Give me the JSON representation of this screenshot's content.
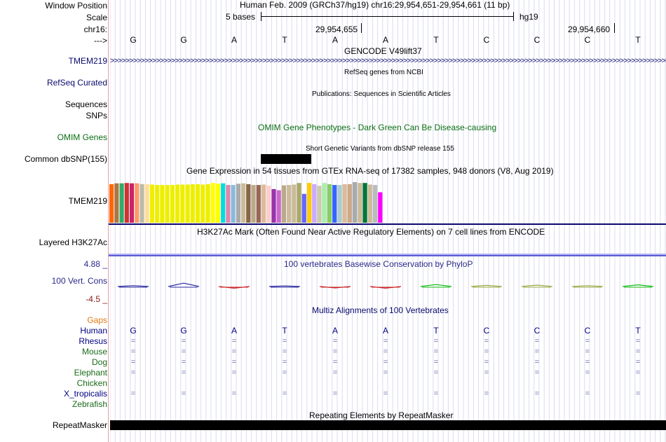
{
  "ruler": {
    "window_label": "Window Position",
    "scale_label": "Scale",
    "chrom_label": "chr16:",
    "arrow_label": "--->",
    "title": "Human Feb. 2009 (GRCh37/hg19)   chr16:29,954,651-29,954,661 (11 bp)",
    "scale_text": "5 bases",
    "assembly": "hg19",
    "pos1": "29,954,655",
    "pos2": "29,954,660",
    "bases": [
      "G",
      "G",
      "A",
      "T",
      "A",
      "A",
      "T",
      "C",
      "C",
      "C",
      "T"
    ]
  },
  "tracks": {
    "gencode": {
      "title": "GENCODE V49lift37",
      "label": "TMEM219",
      "color": "#0a0a6e"
    },
    "refseq": {
      "title": "RefSeq genes from NCBI",
      "label": "RefSeq Curated"
    },
    "pubs": {
      "title": "Publications: Sequences in Scientific Articles",
      "label1": "Sequences",
      "label2": "SNPs"
    },
    "omim": {
      "title": "OMIM Gene Phenotypes - Dark Green Can Be Disease-causing",
      "label": "OMIM Genes",
      "color": "#0a6e14"
    },
    "dbsnp": {
      "title": "Short Genetic Variants from dbSNP release 155",
      "label": "Common dbSNP(155)"
    },
    "gtex": {
      "title": "Gene Expression in 54 tissues from GTEx RNA-seq of 17382 samples, 948 donors (V8, Aug 2019)",
      "label": "TMEM219",
      "colors": [
        "#ff6600",
        "#aa7744",
        "#33aa66",
        "#cc3333",
        "#cc2266",
        "#ff9966",
        "#bbbbaa",
        "#ffdd99",
        "#eeee00",
        "#eeee00",
        "#eeee00",
        "#eeee00",
        "#eeee00",
        "#eeee00",
        "#eeee00",
        "#eeee00",
        "#eeee00",
        "#eeee00",
        "#eeee00",
        "#eeee00",
        "#ffff00",
        "#ffff00",
        "#00dddd",
        "#dd88aa",
        "#88bbdd",
        "#aaaaaa",
        "#ccbb99",
        "#886644",
        "#bbaa88",
        "#996655",
        "#ddbb99",
        "#ffcccc",
        "#9933aa",
        "#cc66cc",
        "#bbaa88",
        "#ccbb99",
        "#ccbb99",
        "#aaaa66",
        "#6666ff",
        "#ffcc00",
        "#ccaaff",
        "#ccccaa",
        "#aaeeaa",
        "#88cc66",
        "#3366ff",
        "#aacccc",
        "#ddbb99",
        "#ccaa88",
        "#aaaaaa",
        "#ccbb99",
        "#007733",
        "#ccbb99",
        "#bbbbbb",
        "#ff00ff"
      ],
      "values": [
        0.95,
        0.97,
        0.97,
        0.98,
        0.97,
        0.97,
        0.95,
        0.95,
        0.94,
        0.93,
        0.93,
        0.93,
        0.93,
        0.94,
        0.94,
        0.94,
        0.95,
        0.95,
        0.94,
        0.95,
        0.98,
        0.96,
        0.97,
        0.93,
        0.93,
        0.96,
        0.97,
        0.95,
        0.93,
        0.93,
        0.94,
        0.91,
        0.83,
        0.8,
        0.92,
        0.93,
        0.94,
        0.98,
        0.71,
        0.98,
        0.95,
        0.91,
        0.98,
        0.95,
        0.93,
        0.93,
        0.95,
        0.95,
        1.0,
        0.98,
        0.98,
        0.94,
        0.93,
        0.75
      ]
    },
    "h3k27ac": {
      "title": "H3K27Ac Mark (Often Found Near Active Regulatory Elements) on 7 cell lines from ENCODE",
      "label": "Layered H3K27Ac"
    },
    "cons": {
      "title": "100 vertebrates Basewise Conservation by PhyloP",
      "label": "100 Vert. Cons",
      "ymax": "4.88 _",
      "ymin": "-4.5 _",
      "scores": [
        0.3,
        1.2,
        -0.6,
        0.2,
        -0.5,
        -0.6,
        0.7,
        0.4,
        0.5,
        0.3,
        0.6
      ],
      "colors": [
        "#2a2aa0",
        "#2a2aa0",
        "#cc2222",
        "#2a2aa0",
        "#cc2222",
        "#cc2222",
        "#11bb11",
        "#99aa44",
        "#99aa44",
        "#99aa44",
        "#11bb11"
      ]
    },
    "multiz": {
      "title": "Multiz Alignments of 100 Vertebrates",
      "gaps": "Gaps",
      "species": [
        {
          "name": "Human",
          "color": "#000080",
          "row": [
            "G",
            "G",
            "A",
            "T",
            "A",
            "A",
            "T",
            "C",
            "C",
            "C",
            "T"
          ]
        },
        {
          "name": "Rhesus",
          "color": "#000080",
          "row": [
            "=",
            "=",
            "=",
            "=",
            "=",
            "=",
            "=",
            "=",
            "=",
            "=",
            "="
          ]
        },
        {
          "name": "Mouse",
          "color": "#1a6a1a",
          "row": [
            "=",
            "=",
            "=",
            "=",
            "=",
            "=",
            "=",
            "=",
            "=",
            "=",
            "="
          ]
        },
        {
          "name": "Dog",
          "color": "#1a6a1a",
          "row": [
            "=",
            "=",
            "=",
            "=",
            "=",
            "=",
            "=",
            "=",
            "=",
            "=",
            "="
          ]
        },
        {
          "name": "Elephant",
          "color": "#1a6a1a",
          "row": [
            "=",
            "=",
            "=",
            "=",
            "=",
            "=",
            "=",
            "=",
            "=",
            "=",
            "="
          ]
        },
        {
          "name": "Chicken",
          "color": "#1a6a1a",
          "row": []
        },
        {
          "name": "X_tropicalis",
          "color": "#000080",
          "row": [
            "=",
            "=",
            "=",
            "=",
            "=",
            "=",
            "=",
            "=",
            "=",
            "=",
            "="
          ]
        },
        {
          "name": "Zebrafish",
          "color": "#1a6a1a",
          "row": []
        }
      ]
    },
    "rmsk": {
      "title": "Repeating Elements by RepeatMasker",
      "label": "RepeatMasker"
    }
  }
}
